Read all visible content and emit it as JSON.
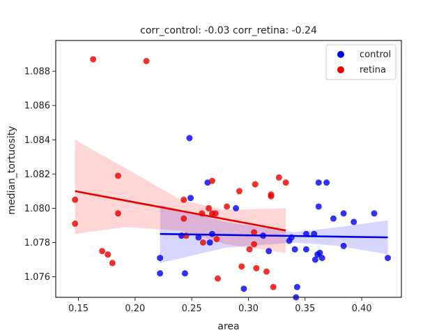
{
  "chart_data": {
    "type": "scatter",
    "title": "corr_control: -0.03  corr_retina: -0.24",
    "xlabel": "area",
    "ylabel": "median_tortuosity",
    "xlim": [
      0.13,
      0.435
    ],
    "ylim": [
      1.0748,
      1.0898
    ],
    "xticks": [
      0.15,
      0.2,
      0.25,
      0.3,
      0.35,
      0.4
    ],
    "xtick_labels": [
      "0.15",
      "0.20",
      "0.25",
      "0.30",
      "0.35",
      "0.40"
    ],
    "yticks": [
      1.076,
      1.078,
      1.08,
      1.082,
      1.084,
      1.086,
      1.088
    ],
    "ytick_labels": [
      "1.076",
      "1.078",
      "1.080",
      "1.082",
      "1.084",
      "1.086",
      "1.088"
    ],
    "legend": {
      "placement": "top-right",
      "entries": [
        {
          "name": "control",
          "color": "#0000e6"
        },
        {
          "name": "retina",
          "color": "#e60000"
        }
      ]
    },
    "series": [
      {
        "name": "control",
        "color": "#0000e6",
        "band_color": "#0000ff",
        "points": [
          [
            0.248,
            1.0841
          ],
          [
            0.249,
            1.0806
          ],
          [
            0.264,
            1.0815
          ],
          [
            0.289,
            1.08
          ],
          [
            0.222,
            1.0771
          ],
          [
            0.222,
            1.0762
          ],
          [
            0.244,
            1.0762
          ],
          [
            0.241,
            1.0784
          ],
          [
            0.256,
            1.0783
          ],
          [
            0.266,
            1.078
          ],
          [
            0.268,
            1.0785
          ],
          [
            0.296,
            1.0753
          ],
          [
            0.313,
            1.0784
          ],
          [
            0.318,
            1.0775
          ],
          [
            0.336,
            1.0781
          ],
          [
            0.338,
            1.0783
          ],
          [
            0.341,
            1.0776
          ],
          [
            0.343,
            1.0754
          ],
          [
            0.342,
            1.0748
          ],
          [
            0.351,
            1.0785
          ],
          [
            0.351,
            1.0776
          ],
          [
            0.358,
            1.0785
          ],
          [
            0.359,
            1.077
          ],
          [
            0.361,
            1.0773
          ],
          [
            0.363,
            1.0774
          ],
          [
            0.365,
            1.0771
          ],
          [
            0.362,
            1.0815
          ],
          [
            0.369,
            1.0815
          ],
          [
            0.362,
            1.0801
          ],
          [
            0.375,
            1.0794
          ],
          [
            0.384,
            1.0797
          ],
          [
            0.384,
            1.0778
          ],
          [
            0.393,
            1.0792
          ],
          [
            0.411,
            1.0797
          ],
          [
            0.423,
            1.0771
          ]
        ],
        "fit": [
          [
            0.222,
            1.0785
          ],
          [
            0.423,
            1.0783
          ]
        ],
        "band": {
          "x": [
            0.222,
            0.28,
            0.34,
            0.38,
            0.423
          ],
          "upper": [
            1.0802,
            1.0792,
            1.0786,
            1.0789,
            1.0793
          ],
          "lower": [
            1.0768,
            1.0777,
            1.078,
            1.0778,
            1.0773
          ]
        }
      },
      {
        "name": "retina",
        "color": "#e60000",
        "band_color": "#ff0000",
        "points": [
          [
            0.163,
            1.0887
          ],
          [
            0.21,
            1.0886
          ],
          [
            0.147,
            1.0805
          ],
          [
            0.147,
            1.0791
          ],
          [
            0.185,
            1.0819
          ],
          [
            0.185,
            1.0797
          ],
          [
            0.171,
            1.0775
          ],
          [
            0.176,
            1.0773
          ],
          [
            0.18,
            1.0768
          ],
          [
            0.243,
            1.0805
          ],
          [
            0.243,
            1.0794
          ],
          [
            0.245,
            1.0784
          ],
          [
            0.259,
            1.0797
          ],
          [
            0.26,
            1.078
          ],
          [
            0.265,
            1.08
          ],
          [
            0.268,
            1.0816
          ],
          [
            0.268,
            1.0797
          ],
          [
            0.271,
            1.0797
          ],
          [
            0.272,
            1.0782
          ],
          [
            0.273,
            1.0759
          ],
          [
            0.281,
            1.0801
          ],
          [
            0.292,
            1.081
          ],
          [
            0.294,
            1.0766
          ],
          [
            0.301,
            1.0776
          ],
          [
            0.305,
            1.0786
          ],
          [
            0.305,
            1.0779
          ],
          [
            0.306,
            1.0814
          ],
          [
            0.307,
            1.0765
          ],
          [
            0.316,
            1.0763
          ],
          [
            0.32,
            1.0808
          ],
          [
            0.32,
            1.0807
          ],
          [
            0.322,
            1.0754
          ],
          [
            0.327,
            1.0818
          ],
          [
            0.333,
            1.0815
          ]
        ],
        "fit": [
          [
            0.147,
            1.081
          ],
          [
            0.333,
            1.0787
          ]
        ],
        "band": {
          "x": [
            0.147,
            0.19,
            0.24,
            0.28,
            0.333
          ],
          "upper": [
            1.084,
            1.0824,
            1.0805,
            1.0799,
            1.08
          ],
          "lower": [
            1.0785,
            1.0789,
            1.0787,
            1.0779,
            1.0774
          ]
        }
      }
    ]
  }
}
